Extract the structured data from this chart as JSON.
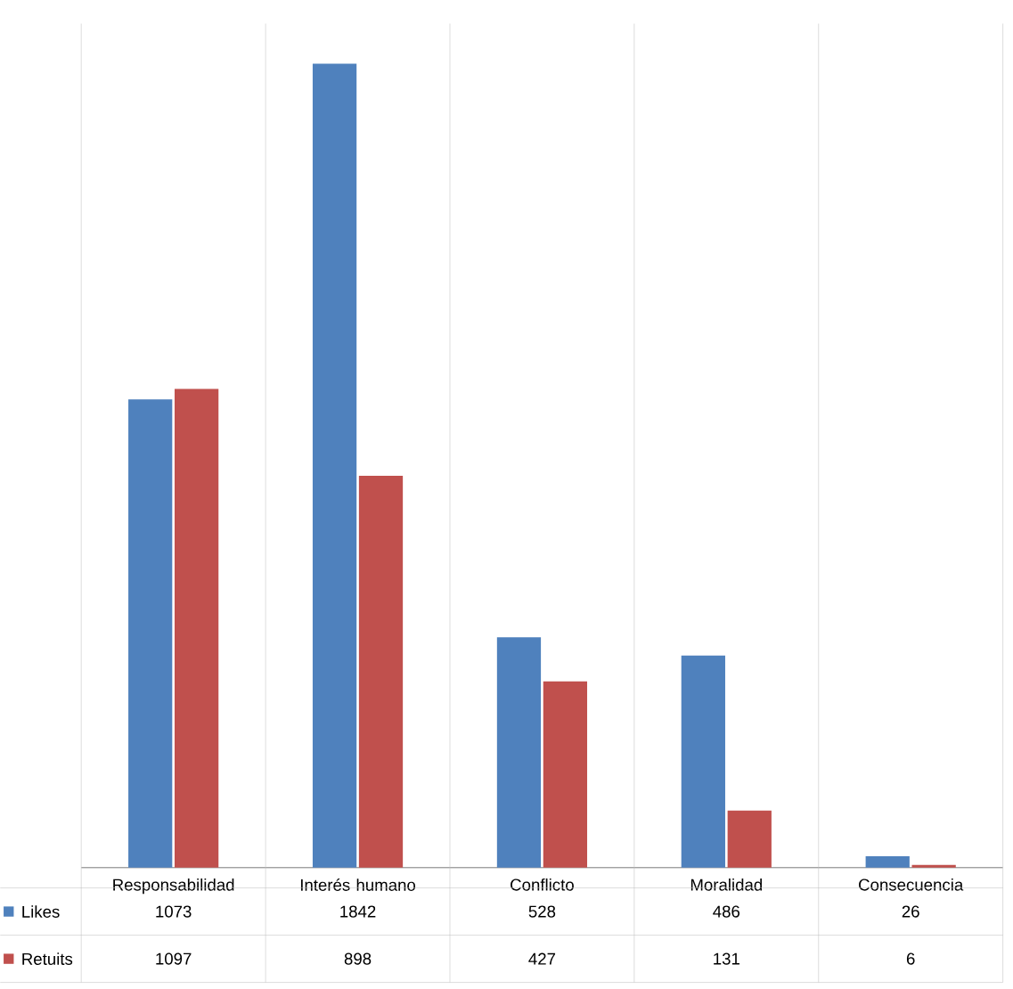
{
  "chart_data": {
    "type": "bar",
    "categories": [
      "Responsabilidad",
      "Interés humano",
      "Conflicto",
      "Moralidad",
      "Consecuencia"
    ],
    "series": [
      {
        "name": "Likes",
        "color": "#4f81bd",
        "values": [
          1073,
          1842,
          528,
          486,
          26
        ]
      },
      {
        "name": "Retuits",
        "color": "#c0504d",
        "values": [
          1097,
          898,
          427,
          131,
          6
        ]
      }
    ],
    "data_labels": true,
    "legend": "bottom left"
  }
}
